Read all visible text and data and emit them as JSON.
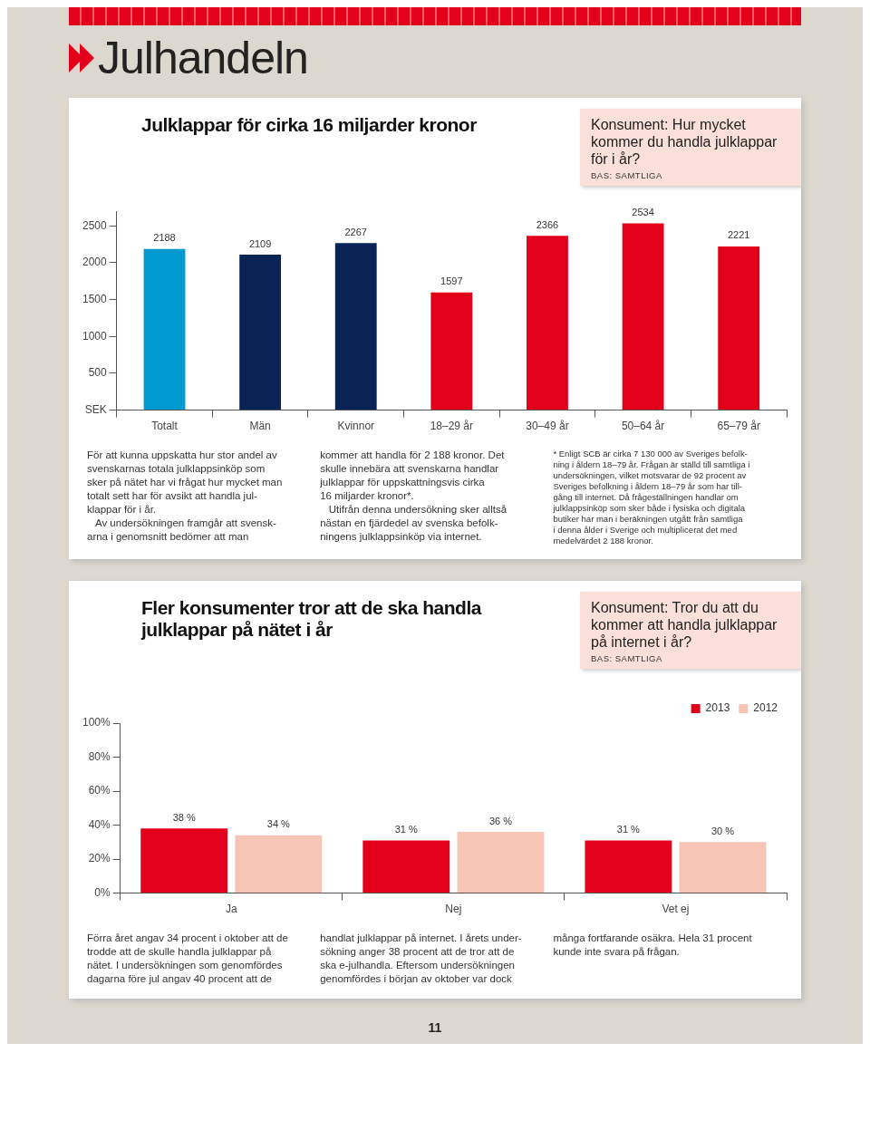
{
  "chart_data": [
    {
      "type": "bar",
      "title": "Julklappar för cirka 16 miljarder kronor",
      "categories": [
        "Totalt",
        "Män",
        "Kvinnor",
        "18–29 år",
        "30–49 år",
        "50–64 år",
        "65–79 år"
      ],
      "values": [
        2188,
        2109,
        2267,
        1597,
        2366,
        2534,
        2221
      ],
      "colors": [
        "#0099d0",
        "#0a2357",
        "#0a2357",
        "#e2001a",
        "#e2001a",
        "#e2001a",
        "#e2001a"
      ],
      "ylim": [
        0,
        2700
      ],
      "yticks": [
        {
          "value": 0,
          "label": "SEK"
        },
        500,
        1000,
        1500,
        2000,
        2500
      ],
      "grid": false,
      "data_labels": true,
      "annotations": [
        "Julhandeln",
        "Konsument: Hur mycket kommer du handla julklappar för i år?",
        "BAS: SAMTLIGA",
        "För att kunna uppskatta hur stor andel av\nsvenskarnas totala julklappsinköp som\nsker på nätet har vi frågat hur mycket man\ntotalt sett har för avsikt att handla jul-\nklappar för i år.\n   Av undersökningen framgår att svensk-\narna i genomsnitt bedömer att man",
        "kommer att handla för 2 188 kronor. Det\nskulle innebära att svenskarna handlar\njulklappar för uppskattningsvis cirka\n16 miljarder kronor*.\n   Utifrån denna undersökning sker alltså\nnästan en fjärdedel av svenska befolk-\nningens julklappsinköp via internet.",
        "* Enligt SCB är cirka 7 130 000 av Sveriges befolk-\nning i åldern 18–79 år. Frågan är ställd till samtliga i\nundersökningen, vilket motsvarar de 92 procent av\nSveriges befolkning i åldern 18–79 år som har till-\ngång till internet. Då frågeställningen handlar om\njulklappsinköp som sker både i fysiska och digitala\nbutiker har man i beräkningen utgått från samtliga\ni denna ålder i Sverige och multiplicerat det med\nmedelvärdet 2 188 kronor."
      ]
    },
    {
      "type": "bar",
      "title": "Fler konsumenter tror att de ska handla julklappar på nätet i år",
      "categories": [
        "Ja",
        "Nej",
        "Vet ej"
      ],
      "series": [
        {
          "name": "2013",
          "color": "#e2001a",
          "values": [
            38,
            31,
            31
          ],
          "value_labels": [
            "38 %",
            "31 %",
            "31 %"
          ]
        },
        {
          "name": "2012",
          "color": "#f6c5b5",
          "values": [
            34,
            36,
            30
          ],
          "value_labels": [
            "34 %",
            "36 %",
            "30 %"
          ]
        }
      ],
      "ylim": [
        0,
        100
      ],
      "yticks": [
        {
          "value": 0,
          "label": "0%"
        },
        {
          "value": 20,
          "label": "20%"
        },
        {
          "value": 40,
          "label": "40%"
        },
        {
          "value": 60,
          "label": "60%"
        },
        {
          "value": 80,
          "label": "80%"
        },
        {
          "value": 100,
          "label": "100%"
        }
      ],
      "grid": false,
      "legend": "top right",
      "annotations": [
        "Konsument: Tror du att du kommer att handla julklappar på internet i år?",
        "BAS: SAMTLIGA",
        "Förra året angav 34 procent i oktober att de\ntrodde att de skulle handla julklappar på\nnätet. I undersökningen som genomfördes\ndagarna före jul angav 40 procent att de",
        "handlat julklappar på internet. I årets under-\nsökning anger 38 procent att de tror att de\nska e-julhandla. Eftersom undersökningen\ngenomfördes i början av oktober var dock",
        "många fortfarande osäkra. Hela 31 procent\nkunde inte svara på frågan.",
        "11"
      ]
    }
  ]
}
